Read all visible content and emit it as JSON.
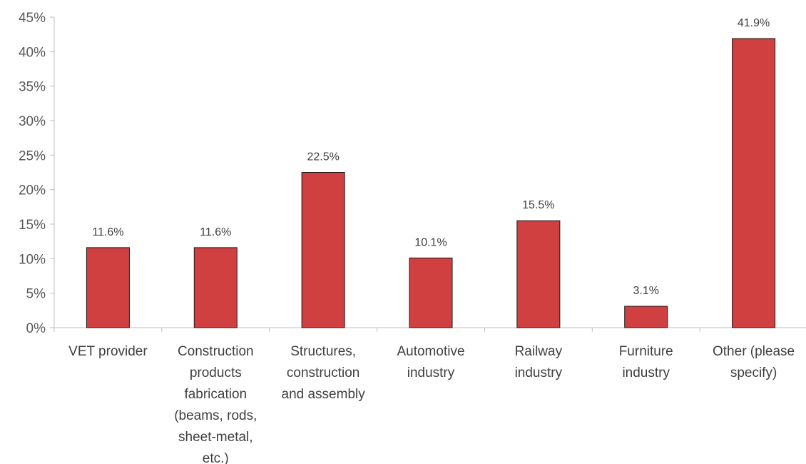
{
  "chart_data": {
    "type": "bar",
    "title": "",
    "xlabel": "",
    "ylabel": "",
    "ylim": [
      0,
      45
    ],
    "y_ticks": [
      "0%",
      "5%",
      "10%",
      "15%",
      "20%",
      "25%",
      "30%",
      "35%",
      "40%",
      "45%"
    ],
    "y_tick_values": [
      0,
      5,
      10,
      15,
      20,
      25,
      30,
      35,
      40,
      45
    ],
    "categories": [
      [
        "VET provider"
      ],
      [
        "Construction",
        "products",
        "fabrication",
        "(beams, rods,",
        "sheet-metal,",
        "etc.)"
      ],
      [
        "Structures,",
        "construction",
        "and assembly"
      ],
      [
        "Automotive",
        "industry"
      ],
      [
        "Railway",
        "industry"
      ],
      [
        "Furniture",
        "industry"
      ],
      [
        "Other (please",
        "specify)"
      ]
    ],
    "values": [
      11.6,
      11.6,
      22.5,
      10.1,
      15.5,
      3.1,
      41.9
    ],
    "data_labels": [
      "11.6%",
      "11.6%",
      "22.5%",
      "10.1%",
      "15.5%",
      "3.1%",
      "41.9%"
    ],
    "grid": false,
    "legend": "none",
    "colors": {
      "bar_fill": "#d04040",
      "bar_stroke": "#1a1a1a",
      "axis": "#bfbfbf"
    }
  }
}
